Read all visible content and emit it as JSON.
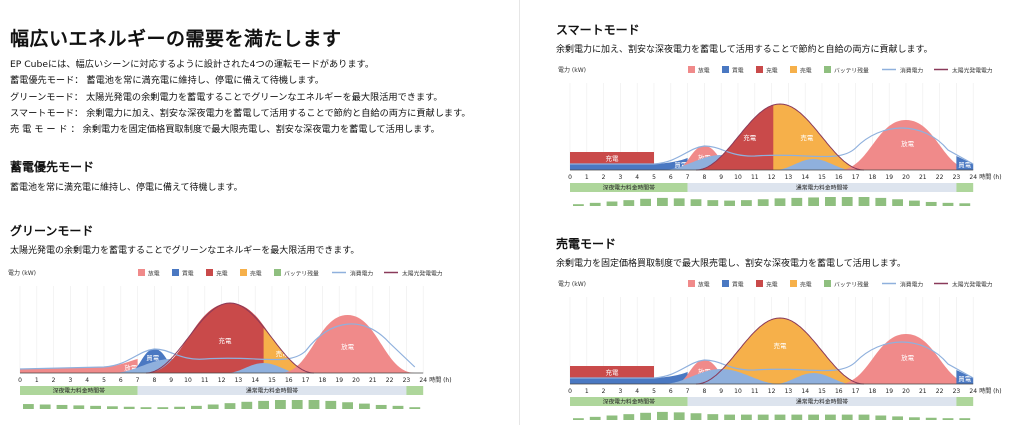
{
  "page": {
    "title": "幅広いエネルギーの需要を満たします",
    "intro": "EP Cubeには、幅広いシーンに対応するように設計された4つの運転モードがあります。",
    "modes": [
      {
        "label": "蓄電優先モード：",
        "text": "蓄電池を常に満充電に維持し、停電に備えて待機します。"
      },
      {
        "label": "グリーンモード：",
        "text": "太陽光発電の余剰電力を蓄電することでグリーンなエネルギーを最大限活用できます。"
      },
      {
        "label": "スマートモード：",
        "text": "余剰電力に加え、割安な深夜電力を蓄電して活用することで節約と自給の両方に貢献します。"
      },
      {
        "label": "売 電 モ ー ド ：",
        "text": "余剰電力を固定価格買取制度で最大限売電し、割安な深夜電力を蓄電して活用します。"
      }
    ]
  },
  "sections": {
    "priority": {
      "heading": "蓄電優先モード",
      "desc": "蓄電池を常に満充電に維持し、停電に備えて待機します。"
    },
    "green": {
      "heading": "グリーンモード",
      "desc": "太陽光発電の余剰電力を蓄電することでグリーンなエネルギーを最大限活用できます。"
    },
    "smart": {
      "heading": "スマートモード",
      "desc": "余剰電力に加え、割安な深夜電力を蓄電して活用することで節約と自給の両方に貢献します。"
    },
    "sell": {
      "heading": "売電モード",
      "desc": "余剰電力を固定価格買取制度で最大限売電し、割安な深夜電力を蓄電して活用します。"
    }
  },
  "colors": {
    "discharge": "#f08a8a",
    "buy": "#4a78c2",
    "charge": "#c94a4a",
    "sell": "#f6b04a",
    "battery": "#8fbf7f",
    "consumption": "#8fb0dd",
    "solar": "#8a3a5a",
    "lowrate": "#aed69b",
    "normalrate": "#dde4ee"
  },
  "chart_common": {
    "ylabel": "電力 (kW)",
    "xlabel": "時間 (h)",
    "x_ticks": [
      "0",
      "1",
      "2",
      "3",
      "4",
      "5",
      "6",
      "7",
      "8",
      "9",
      "10",
      "11",
      "12",
      "13",
      "14",
      "15",
      "16",
      "17",
      "18",
      "19",
      "20",
      "21",
      "22",
      "23",
      "24"
    ],
    "legend": [
      "放電",
      "買電",
      "充電",
      "売電",
      "バッテリ残量",
      "消費電力",
      "太陽光発電電力"
    ],
    "band_low": "深夜電力料金時間帯",
    "band_normal": "通常電力料金時間帯"
  },
  "chart_data": [
    {
      "id": "green",
      "type": "area",
      "x": [
        0,
        24
      ],
      "labels": {
        "discharge_night": "放電",
        "buy": "買電",
        "charge": "充電",
        "sell": "売電",
        "discharge_eve": "放電"
      },
      "battery_level": [
        0.55,
        0.5,
        0.45,
        0.4,
        0.35,
        0.3,
        0.25,
        0.2,
        0.2,
        0.25,
        0.35,
        0.5,
        0.65,
        0.8,
        0.9,
        1,
        1,
        1,
        0.9,
        0.75,
        0.6,
        0.45,
        0.35,
        0.2
      ]
    },
    {
      "id": "smart",
      "type": "area",
      "x": [
        0,
        24
      ],
      "labels": {
        "charge_night": "充電",
        "buy": "買電",
        "discharge_morning": "放電",
        "charge_day": "充電",
        "sell": "売電",
        "discharge_eve": "放電",
        "buy_late": "買電"
      },
      "battery_level": [
        0.2,
        0.35,
        0.5,
        0.65,
        0.8,
        0.9,
        0.85,
        0.75,
        0.65,
        0.6,
        0.65,
        0.75,
        0.85,
        0.9,
        0.95,
        1,
        1,
        1,
        0.9,
        0.75,
        0.6,
        0.45,
        0.35,
        0.3
      ]
    },
    {
      "id": "sell",
      "type": "area",
      "x": [
        0,
        24
      ],
      "labels": {
        "charge_night": "充電",
        "discharge_morning": "放電",
        "sell": "売電",
        "discharge_eve": "放電",
        "buy_late": "買電"
      },
      "battery_level": [
        0.2,
        0.35,
        0.5,
        0.65,
        0.8,
        0.9,
        0.85,
        0.75,
        0.65,
        0.6,
        0.6,
        0.6,
        0.6,
        0.6,
        0.6,
        0.6,
        0.6,
        0.6,
        0.5,
        0.4,
        0.3,
        0.25,
        0.2,
        0.2
      ]
    }
  ]
}
